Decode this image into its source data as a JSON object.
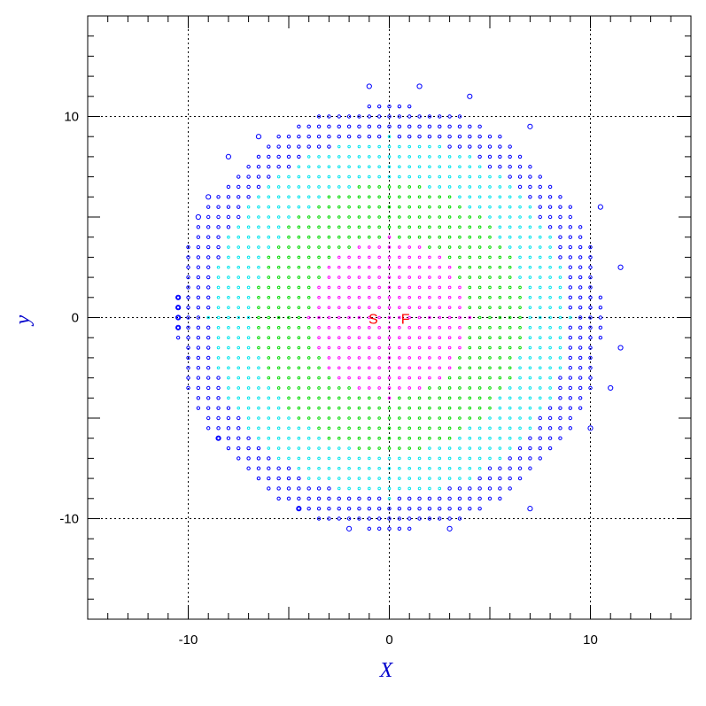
{
  "chart_data": {
    "type": "scatter",
    "title": "",
    "xlabel": "X",
    "ylabel": "y",
    "xlim": [
      -15,
      15
    ],
    "ylim": [
      -15,
      15
    ],
    "major_ticks": [
      -10,
      0,
      10
    ],
    "minor_tick_step": 1,
    "grid": "dotted lines at -10, 0, 10",
    "x_tick_labels": [
      "-10",
      "0",
      "10"
    ],
    "y_tick_labels": [
      "-10",
      "0",
      "10"
    ],
    "lattice": {
      "step": 0.5,
      "boundary_radius": 10.6,
      "zones": [
        {
          "name": "inner",
          "r_max": 4.0,
          "color": "#ff00ff"
        },
        {
          "name": "middle",
          "r_max": 6.8,
          "color": "#00dd00"
        },
        {
          "name": "outer",
          "r_max": 9.0,
          "color": "#00e5ee"
        },
        {
          "name": "edge",
          "r_max": 10.6,
          "color": "#0000ff"
        }
      ]
    },
    "outlier_points": [
      [
        -1,
        11.5
      ],
      [
        1.5,
        11.5
      ],
      [
        4,
        11
      ],
      [
        7,
        9.5
      ],
      [
        -6.5,
        9
      ],
      [
        -8,
        8
      ],
      [
        -9,
        6
      ],
      [
        -9.5,
        5
      ],
      [
        10.5,
        5.5
      ],
      [
        11.5,
        2.5
      ],
      [
        -10.5,
        1
      ],
      [
        -10.5,
        0.5
      ],
      [
        -10.5,
        0
      ],
      [
        -10.5,
        -0.5
      ],
      [
        11.5,
        -1.5
      ],
      [
        11,
        -3.5
      ],
      [
        10,
        -5.5
      ],
      [
        -8.5,
        -6
      ],
      [
        7,
        -9.5
      ],
      [
        -4.5,
        -9.5
      ],
      [
        -2,
        -10.5
      ],
      [
        3,
        -10.5
      ]
    ],
    "markers": [
      {
        "label": "S",
        "x": -0.8,
        "y": 0,
        "color": "#ff0000"
      },
      {
        "label": "F",
        "x": 0.8,
        "y": 0,
        "color": "#ff0000"
      }
    ],
    "colors": {
      "axis_label": "#0000cc",
      "frame": "#000000",
      "grid": "#000000"
    }
  }
}
